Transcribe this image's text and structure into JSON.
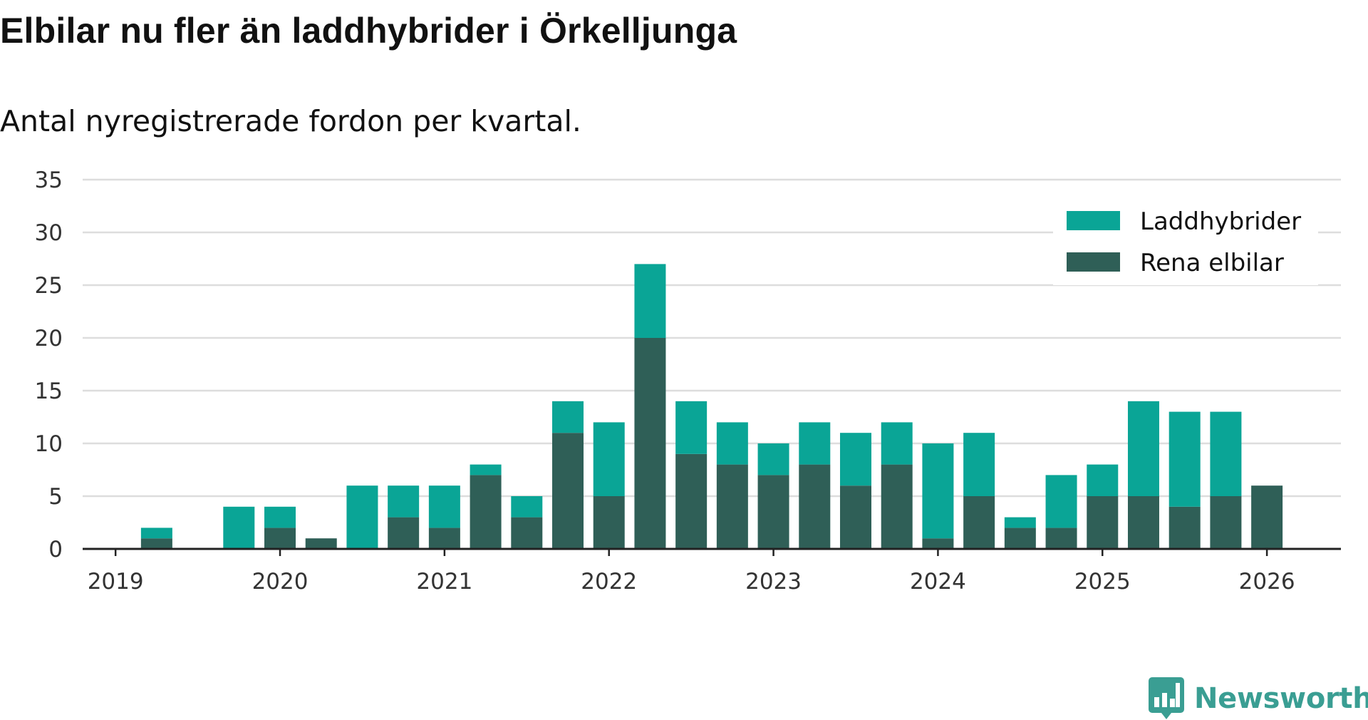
{
  "title": "Elbilar nu fler än laddhybrider i Örkelljunga",
  "subtitle": "Antal nyregistrerade fordon per kvartal.",
  "logo_text": "Newsworthy",
  "colors": {
    "laddhybrider": "#0aa596",
    "elbilar": "#2f5f57",
    "grid": "#dddddd",
    "axis": "#222222"
  },
  "chart_data": {
    "type": "bar",
    "stacked": true,
    "x": [
      2019.0,
      2019.25,
      2019.5,
      2019.75,
      2020.0,
      2020.25,
      2020.5,
      2020.75,
      2021.0,
      2021.25,
      2021.5,
      2021.75,
      2022.0,
      2022.25,
      2022.5,
      2022.75,
      2023.0,
      2023.25,
      2023.5,
      2023.75,
      2024.0,
      2024.25,
      2024.5,
      2024.75,
      2025.0,
      2025.25,
      2025.5,
      2025.75,
      2026.0
    ],
    "series": [
      {
        "name": "Rena elbilar",
        "color": "#2f5f57",
        "values": [
          0,
          1,
          0,
          0,
          2,
          1,
          0,
          3,
          2,
          7,
          3,
          11,
          5,
          20,
          9,
          8,
          7,
          8,
          6,
          8,
          1,
          5,
          2,
          2,
          5,
          5,
          4,
          5,
          6
        ]
      },
      {
        "name": "Laddhybrider",
        "color": "#0aa596",
        "values": [
          0,
          1,
          0,
          4,
          2,
          0,
          6,
          3,
          4,
          1,
          2,
          3,
          7,
          7,
          5,
          4,
          3,
          4,
          5,
          4,
          9,
          6,
          1,
          5,
          3,
          9,
          9,
          8,
          0
        ]
      }
    ],
    "xticks": [
      "2019",
      "2020",
      "2021",
      "2022",
      "2023",
      "2024",
      "2025",
      "2026"
    ],
    "xtick_values": [
      2019,
      2020,
      2021,
      2022,
      2023,
      2024,
      2025,
      2026
    ],
    "yticks": [
      "0",
      "5",
      "10",
      "15",
      "20",
      "25",
      "30",
      "35"
    ],
    "ytick_values": [
      0,
      5,
      10,
      15,
      20,
      25,
      30,
      35
    ],
    "ylim": [
      0,
      35
    ],
    "xlim": [
      2018.8,
      2026.45
    ],
    "legend": [
      {
        "label": "Laddhybrider",
        "color": "#0aa596"
      },
      {
        "label": "Rena elbilar",
        "color": "#2f5f57"
      }
    ],
    "legend_position": "top-right",
    "grid": true
  }
}
